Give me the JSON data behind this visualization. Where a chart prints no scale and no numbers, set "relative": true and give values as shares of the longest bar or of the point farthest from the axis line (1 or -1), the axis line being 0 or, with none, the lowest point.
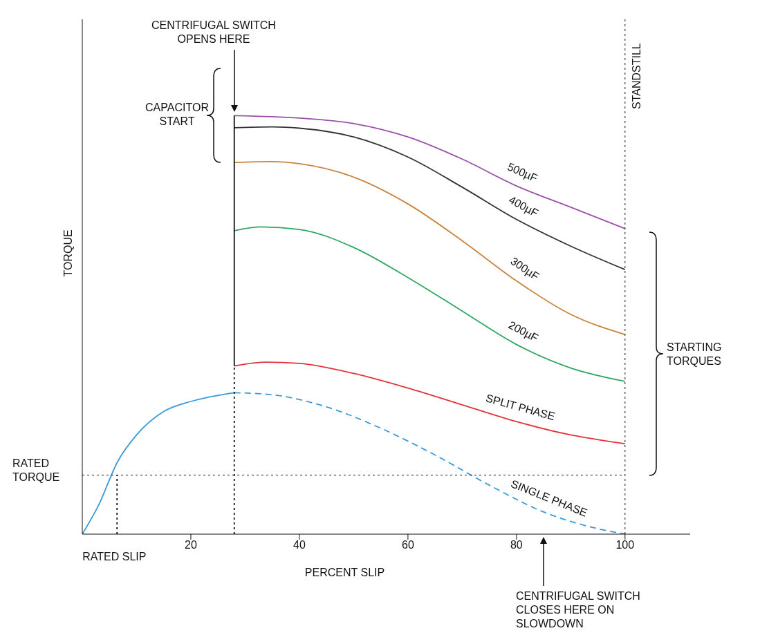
{
  "chart_data": {
    "type": "line",
    "relative": true,
    "xlabel": "PERCENT SLIP",
    "ylabel": "TORQUE",
    "xlim": [
      0,
      112
    ],
    "xticks": [
      20,
      40,
      60,
      80,
      100
    ],
    "marker": "none",
    "legend": false,
    "grid": false,
    "series": [
      {
        "name": "500µF",
        "color": "#9b4fa8",
        "x": [
          28,
          40,
          50,
          60,
          70,
          80,
          90,
          100
        ],
        "values": [
          1.0,
          0.994,
          0.981,
          0.949,
          0.896,
          0.832,
          0.781,
          0.73
        ]
      },
      {
        "name": "400µF",
        "color": "#333333",
        "x": [
          28,
          35,
          40,
          50,
          60,
          70,
          80,
          90,
          100
        ],
        "values": [
          0.971,
          0.973,
          0.97,
          0.949,
          0.901,
          0.829,
          0.752,
          0.688,
          0.632
        ]
      },
      {
        "name": "300µF",
        "color": "#c8843e",
        "x": [
          28,
          35,
          40,
          50,
          60,
          70,
          80,
          90,
          100
        ],
        "values": [
          0.888,
          0.89,
          0.885,
          0.853,
          0.789,
          0.701,
          0.605,
          0.525,
          0.477
        ]
      },
      {
        "name": "200µF",
        "color": "#2ea660",
        "x": [
          28,
          33,
          40,
          50,
          60,
          70,
          80,
          90,
          100
        ],
        "values": [
          0.725,
          0.734,
          0.728,
          0.685,
          0.613,
          0.533,
          0.453,
          0.397,
          0.365
        ]
      },
      {
        "name": "SPLIT PHASE",
        "color": "#e0343a",
        "x": [
          28,
          34,
          40,
          50,
          60,
          70,
          80,
          90,
          100
        ],
        "values": [
          0.402,
          0.411,
          0.408,
          0.384,
          0.349,
          0.309,
          0.269,
          0.237,
          0.216
        ]
      },
      {
        "color": "#3a9ad9",
        "x": [
          0,
          3,
          6.5,
          10,
          15,
          20,
          28
        ],
        "values": [
          0,
          0.069,
          0.173,
          0.237,
          0.293,
          0.317,
          0.338
        ]
      },
      {
        "name": "SINGLE PHASE",
        "color": "#3a9ad9",
        "line_style": "dashed",
        "x": [
          28,
          35,
          45,
          55,
          65,
          75,
          85,
          95,
          100
        ],
        "values": [
          0.338,
          0.333,
          0.304,
          0.253,
          0.189,
          0.117,
          0.053,
          0.013,
          0
        ]
      },
      {
        "color": "#111111",
        "x": [
          28,
          28
        ],
        "values": [
          0.402,
          1.0
        ]
      },
      {
        "color": "#111111",
        "line_style": "dotted",
        "x": [
          28,
          28
        ],
        "values": [
          0,
          0.402
        ]
      },
      {
        "color": "#111111",
        "line_style": "dotted",
        "x": [
          6.4,
          6.4
        ],
        "values": [
          0,
          0.141
        ]
      }
    ],
    "ref_lines": [
      {
        "axis": "y",
        "value": 0.141,
        "label": "RATED\nTORQUE",
        "line_style": "dotted"
      },
      {
        "axis": "x",
        "value": 100,
        "label": "STANDSTILL",
        "line_style": "dotted"
      }
    ],
    "annotations": [
      "CENTRIFUGAL SWITCH\nOPENS HERE",
      "CAPACITOR\nSTART",
      "STARTING\nTORQUES",
      "CENTRIFUGAL SWITCH\nCLOSES HERE ON\nSLOWDOWN",
      {
        "text": "RATED SLIP",
        "x": 6.4,
        "y": 0
      }
    ]
  }
}
